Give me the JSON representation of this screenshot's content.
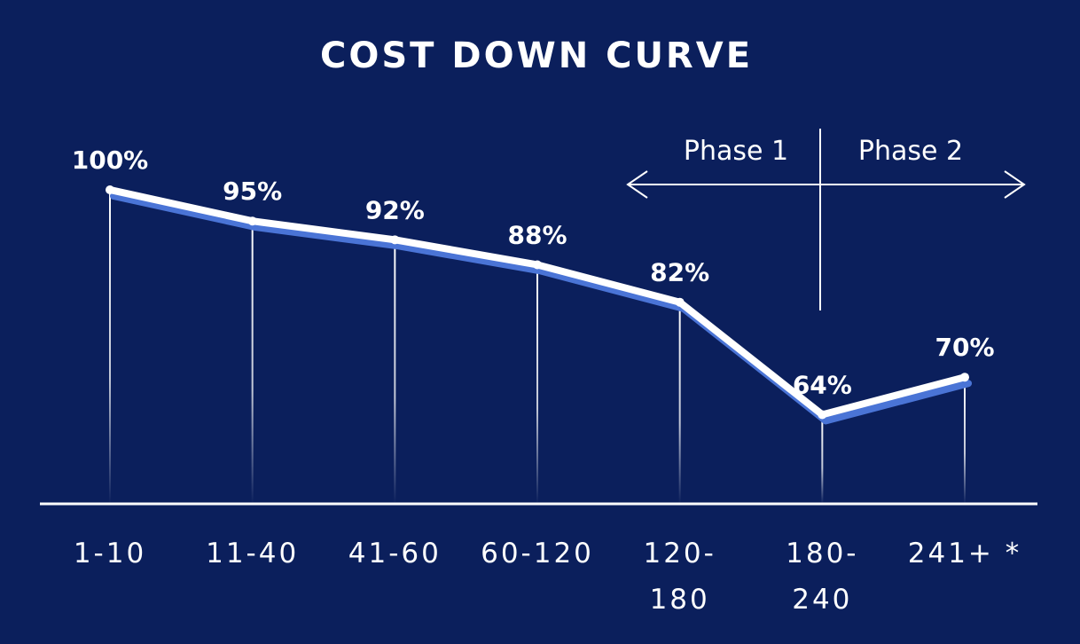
{
  "chart_data": {
    "type": "line",
    "title": "COST DOWN CURVE",
    "categories": [
      [
        "1-10"
      ],
      [
        "11-40"
      ],
      [
        "41-60"
      ],
      [
        "60-120"
      ],
      [
        "120-",
        "180"
      ],
      [
        "180-",
        "240"
      ],
      [
        "241+ *"
      ]
    ],
    "values": [
      100,
      95,
      92,
      88,
      82,
      64,
      70
    ],
    "value_labels": [
      "100%",
      "95%",
      "92%",
      "88%",
      "82%",
      "64%",
      "70%"
    ],
    "phases": {
      "phase1_label": "Phase 1",
      "phase2_label": "Phase 2"
    },
    "colors": {
      "background": "#0b1f5c",
      "line": "#ffffff",
      "line_shadow": "#4a74d6",
      "axis": "#ffffff"
    }
  }
}
